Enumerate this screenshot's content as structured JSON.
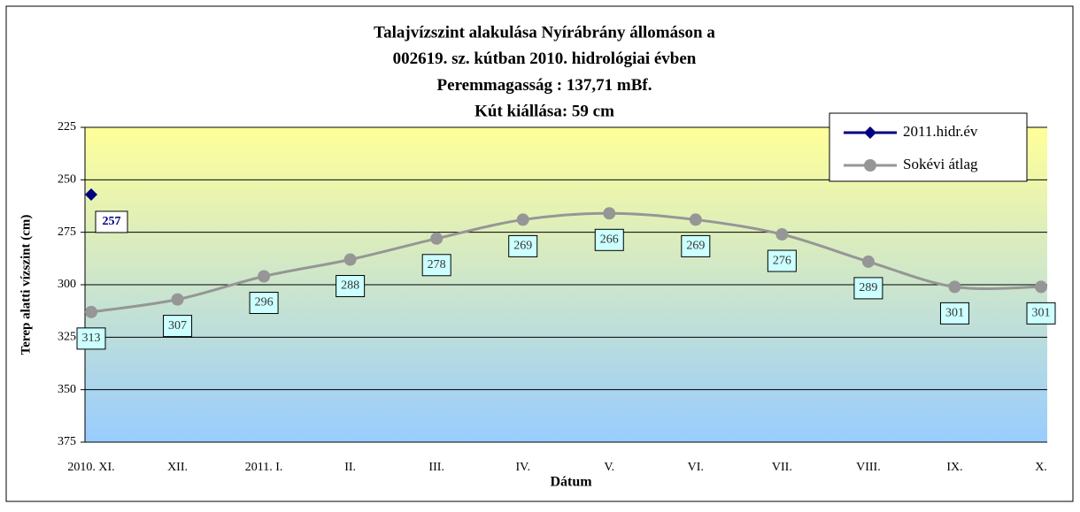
{
  "chart_data": {
    "type": "line",
    "title": [
      "Talajvízszint alakulása Nyírábrány állomáson a",
      "002619. sz. kútban 2010. hidrológiai évben",
      "Peremmagasság : 137,71 mBf.",
      "Kút kiállása: 59 cm"
    ],
    "x_label": "Dátum",
    "y_label": "Terep alatti vízszint (cm)",
    "categories": [
      "2010. XI.",
      "XII.",
      "2011. I.",
      "II.",
      "III.",
      "IV.",
      "V.",
      "VI.",
      "VII.",
      "VIII.",
      "IX.",
      "X."
    ],
    "series": [
      {
        "name": "2011.hidr.év",
        "color": "#000080",
        "values": [
          257,
          null,
          null,
          null,
          null,
          null,
          null,
          null,
          null,
          null,
          null,
          null
        ]
      },
      {
        "name": "Sokévi átlag",
        "color": "#969696",
        "values": [
          313,
          307,
          296,
          288,
          278,
          269,
          266,
          269,
          276,
          289,
          301,
          301
        ]
      }
    ],
    "ylim": [
      225,
      375
    ],
    "yticks": [
      225,
      250,
      275,
      300,
      325,
      350,
      375
    ],
    "y_inverted": true,
    "grid": true,
    "legend": "top-right"
  }
}
